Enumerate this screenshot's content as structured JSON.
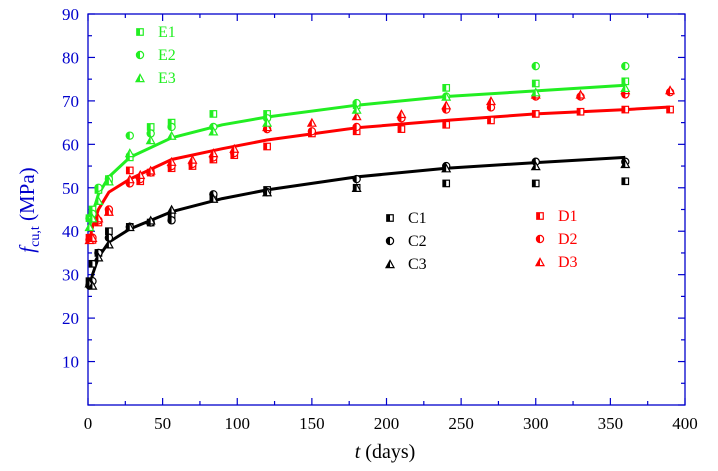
{
  "chart_data": {
    "type": "scatter",
    "xlabel_italic": "t",
    "xlabel_rest": " (days)",
    "ylabel_italic": "f",
    "ylabel_sub": "cu,t",
    "ylabel_rest": " (MPa)",
    "xlim": [
      0,
      400
    ],
    "ylim": [
      0,
      90
    ],
    "x_ticks": [
      0,
      50,
      100,
      150,
      200,
      250,
      300,
      350,
      400
    ],
    "y_ticks": [
      10,
      20,
      30,
      40,
      50,
      60,
      70,
      80,
      90
    ],
    "grid": false,
    "axis_color": "#0000cc",
    "groups": [
      {
        "color": "#000000",
        "legend_position": "center-right",
        "fit_curve": [
          [
            1,
            27
          ],
          [
            3,
            30
          ],
          [
            7,
            34
          ],
          [
            14,
            37.5
          ],
          [
            28,
            40.5
          ],
          [
            56,
            44.5
          ],
          [
            90,
            47.5
          ],
          [
            120,
            49.5
          ],
          [
            180,
            52.5
          ],
          [
            240,
            54.5
          ],
          [
            300,
            55.8
          ],
          [
            360,
            57
          ]
        ],
        "series": [
          {
            "name": "C1",
            "marker": "square",
            "points": [
              [
                1,
                28.5
              ],
              [
                3,
                32.5
              ],
              [
                7,
                35
              ],
              [
                14,
                40
              ],
              [
                28,
                41
              ],
              [
                42,
                42
              ],
              [
                56,
                43.5
              ],
              [
                84,
                48
              ],
              [
                120,
                49.5
              ],
              [
                180,
                50
              ],
              [
                240,
                51
              ],
              [
                300,
                51
              ],
              [
                360,
                51.5
              ]
            ]
          },
          {
            "name": "C2",
            "marker": "circle",
            "points": [
              [
                1,
                27.5
              ],
              [
                3,
                28.5
              ],
              [
                7,
                35
              ],
              [
                14,
                38.5
              ],
              [
                28,
                41
              ],
              [
                42,
                42
              ],
              [
                56,
                42.5
              ],
              [
                84,
                48.5
              ],
              [
                120,
                49
              ],
              [
                180,
                52
              ],
              [
                240,
                55
              ],
              [
                300,
                56
              ],
              [
                360,
                56
              ]
            ]
          },
          {
            "name": "C3",
            "marker": "triangle",
            "points": [
              [
                1,
                28
              ],
              [
                3,
                27.5
              ],
              [
                7,
                34
              ],
              [
                14,
                37
              ],
              [
                28,
                41
              ],
              [
                42,
                42.5
              ],
              [
                56,
                45
              ],
              [
                84,
                47.5
              ],
              [
                120,
                49
              ],
              [
                180,
                50
              ],
              [
                240,
                54.5
              ],
              [
                300,
                55
              ],
              [
                360,
                55.5
              ]
            ]
          }
        ]
      },
      {
        "color": "#ff0000",
        "legend_position": "center-right",
        "fit_curve": [
          [
            1,
            38
          ],
          [
            3,
            41
          ],
          [
            7,
            45
          ],
          [
            14,
            49
          ],
          [
            28,
            52
          ],
          [
            56,
            56.5
          ],
          [
            90,
            59
          ],
          [
            120,
            61
          ],
          [
            180,
            63.8
          ],
          [
            240,
            65.5
          ],
          [
            300,
            67
          ],
          [
            360,
            68
          ],
          [
            390,
            68.6
          ]
        ],
        "series": [
          {
            "name": "D1",
            "marker": "square",
            "points": [
              [
                1,
                38.5
              ],
              [
                3,
                38
              ],
              [
                7,
                42
              ],
              [
                14,
                44.5
              ],
              [
                28,
                54
              ],
              [
                35,
                51.5
              ],
              [
                42,
                53.5
              ],
              [
                56,
                54.5
              ],
              [
                70,
                55
              ],
              [
                84,
                56.5
              ],
              [
                98,
                57.5
              ],
              [
                120,
                59.5
              ],
              [
                150,
                62.5
              ],
              [
                180,
                63
              ],
              [
                210,
                63.5
              ],
              [
                240,
                64.5
              ],
              [
                270,
                65.5
              ],
              [
                300,
                67
              ],
              [
                330,
                67.5
              ],
              [
                360,
                68
              ],
              [
                390,
                68
              ]
            ]
          },
          {
            "name": "D2",
            "marker": "circle",
            "points": [
              [
                1,
                38
              ],
              [
                3,
                38.5
              ],
              [
                7,
                42.5
              ],
              [
                14,
                45
              ],
              [
                28,
                51
              ],
              [
                35,
                52
              ],
              [
                42,
                53.5
              ],
              [
                56,
                55
              ],
              [
                70,
                55.5
              ],
              [
                84,
                57
              ],
              [
                98,
                58
              ],
              [
                120,
                63.5
              ],
              [
                150,
                63
              ],
              [
                180,
                64
              ],
              [
                210,
                66
              ],
              [
                240,
                68
              ],
              [
                270,
                68.5
              ],
              [
                300,
                71
              ],
              [
                330,
                71
              ],
              [
                360,
                71.5
              ],
              [
                390,
                72
              ]
            ]
          },
          {
            "name": "D3",
            "marker": "triangle",
            "points": [
              [
                1,
                38
              ],
              [
                3,
                38.5
              ],
              [
                7,
                43
              ],
              [
                14,
                44.5
              ],
              [
                28,
                52
              ],
              [
                35,
                53
              ],
              [
                42,
                54
              ],
              [
                56,
                56
              ],
              [
                70,
                56.5
              ],
              [
                84,
                58
              ],
              [
                98,
                59
              ],
              [
                120,
                64
              ],
              [
                150,
                65
              ],
              [
                180,
                66.5
              ],
              [
                210,
                67
              ],
              [
                240,
                69
              ],
              [
                270,
                70
              ],
              [
                300,
                71.5
              ],
              [
                330,
                71.5
              ],
              [
                360,
                72.5
              ],
              [
                390,
                72.5
              ]
            ]
          }
        ]
      },
      {
        "color": "#22ee22",
        "legend_position": "top-left",
        "fit_curve": [
          [
            1,
            41
          ],
          [
            3,
            44
          ],
          [
            7,
            48.5
          ],
          [
            14,
            52.5
          ],
          [
            28,
            57
          ],
          [
            56,
            61.5
          ],
          [
            90,
            64.5
          ],
          [
            120,
            66.3
          ],
          [
            180,
            69
          ],
          [
            240,
            71
          ],
          [
            300,
            72.3
          ],
          [
            360,
            73.6
          ]
        ],
        "series": [
          {
            "name": "E1",
            "marker": "square",
            "points": [
              [
                1,
                43
              ],
              [
                3,
                45
              ],
              [
                7,
                49.5
              ],
              [
                14,
                52
              ],
              [
                28,
                57
              ],
              [
                42,
                64
              ],
              [
                56,
                65
              ],
              [
                84,
                67
              ],
              [
                120,
                67
              ],
              [
                180,
                69
              ],
              [
                240,
                73
              ],
              [
                300,
                74
              ],
              [
                360,
                74.5
              ]
            ]
          },
          {
            "name": "E2",
            "marker": "circle",
            "points": [
              [
                1,
                43
              ],
              [
                3,
                44
              ],
              [
                7,
                50
              ],
              [
                14,
                52
              ],
              [
                28,
                62
              ],
              [
                42,
                62.5
              ],
              [
                56,
                64
              ],
              [
                84,
                64
              ],
              [
                120,
                66
              ],
              [
                180,
                69.5
              ],
              [
                240,
                71
              ],
              [
                300,
                78
              ],
              [
                360,
                78
              ]
            ]
          },
          {
            "name": "E3",
            "marker": "triangle",
            "points": [
              [
                1,
                41
              ],
              [
                3,
                43
              ],
              [
                7,
                47
              ],
              [
                14,
                51.5
              ],
              [
                28,
                58
              ],
              [
                42,
                61
              ],
              [
                56,
                62
              ],
              [
                84,
                63
              ],
              [
                120,
                65
              ],
              [
                180,
                68
              ],
              [
                240,
                71
              ],
              [
                300,
                72
              ],
              [
                360,
                73
              ]
            ]
          }
        ]
      }
    ]
  }
}
